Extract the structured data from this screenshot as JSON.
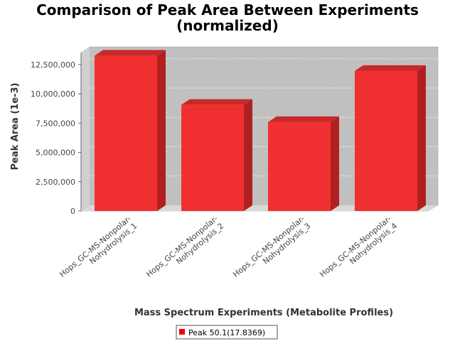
{
  "chart_data": {
    "type": "bar",
    "title_lines": [
      "Comparison of Peak Area Between Experiments",
      "(normalized)"
    ],
    "xlabel": "Mass Spectrum Experiments (Metabolite Profiles)",
    "ylabel": "Peak Area (1e-3)",
    "categories": [
      [
        "Hops_GC-MS-Nonpolar-",
        "Nohydrolysis_1"
      ],
      [
        "Hops_GC-MS-Nonpolar-",
        "Nohydrolysis_2"
      ],
      [
        "Hops_GC-MS-Nonpolar-",
        "Nohydrolysis_3"
      ],
      [
        "Hops_GC-MS-Nonpolar-",
        "Nohydrolysis_4"
      ]
    ],
    "series": [
      {
        "name": "Peak 50.1(17.8369)",
        "values": [
          13250000,
          9050000,
          7580000,
          11950000
        ]
      }
    ],
    "yticks": [
      0,
      2500000,
      5000000,
      7500000,
      10000000,
      12500000
    ],
    "ytick_labels": [
      "0",
      "2,500,000",
      "5,000,000",
      "7,500,000",
      "10,000,000",
      "12,500,000"
    ],
    "ylim": [
      0,
      14000000
    ],
    "grid": true,
    "legend_position": "bottom",
    "colors": {
      "bar": "#f03030",
      "bar_side": "#b02020",
      "bar_top": "#c82828",
      "plot_bg": "#c0c0c0",
      "floor": "#d8d8d8"
    }
  }
}
